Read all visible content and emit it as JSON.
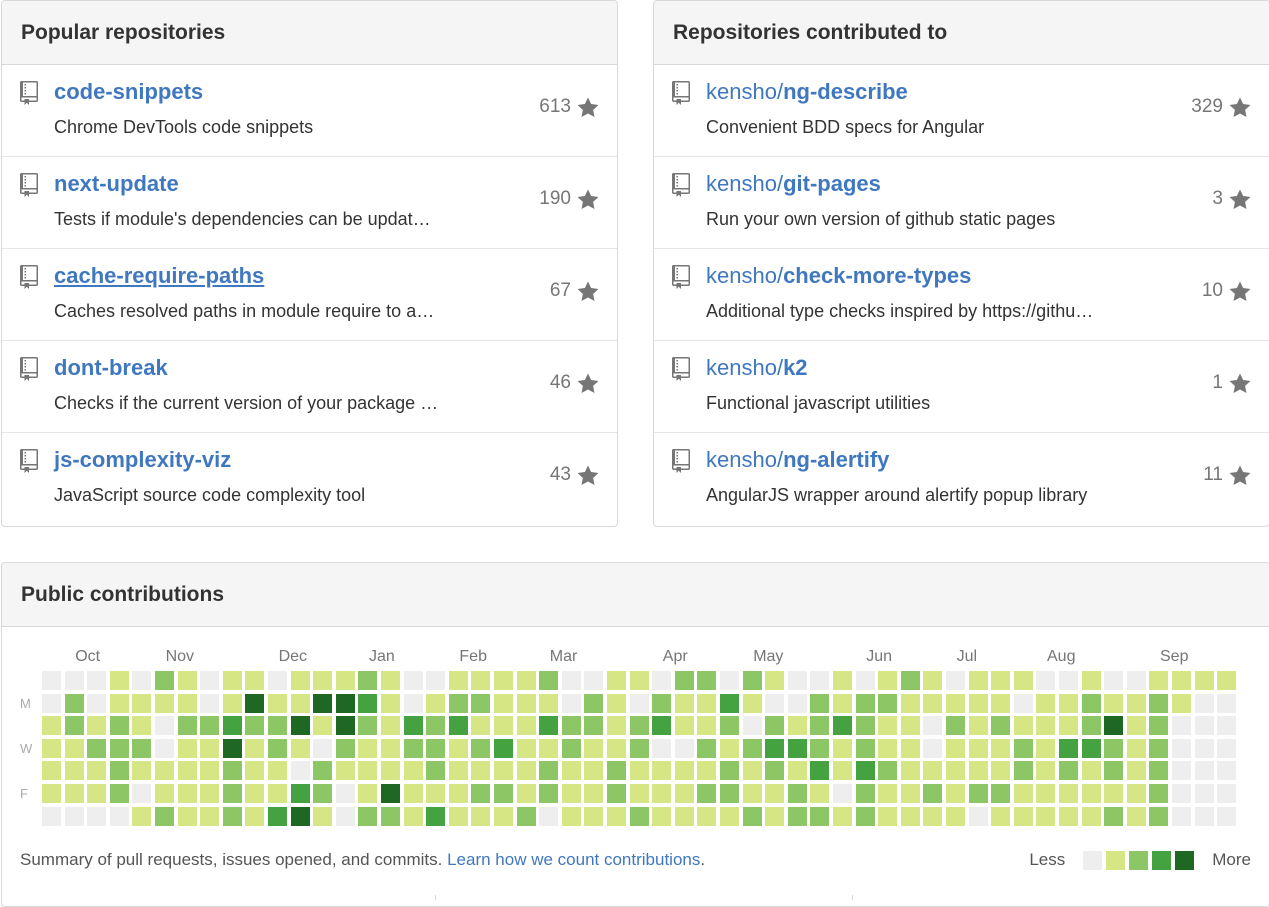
{
  "popular": {
    "title": "Popular repositories",
    "repos": [
      {
        "name": "code-snippets",
        "desc": "Chrome DevTools code snippets",
        "stars": "613"
      },
      {
        "name": "next-update",
        "desc": "Tests if module's dependencies can be updat…",
        "stars": "190"
      },
      {
        "name": "cache-require-paths",
        "desc": "Caches resolved paths in module require to a…",
        "stars": "67"
      },
      {
        "name": "dont-break",
        "desc": "Checks if the current version of your package …",
        "stars": "46"
      },
      {
        "name": "js-complexity-viz",
        "desc": "JavaScript source code complexity tool",
        "stars": "43"
      }
    ]
  },
  "contributed": {
    "title": "Repositories contributed to",
    "repos": [
      {
        "owner": "kensho/",
        "name": "ng-describe",
        "desc": "Convenient BDD specs for Angular",
        "stars": "329"
      },
      {
        "owner": "kensho/",
        "name": "git-pages",
        "desc": "Run your own version of github static pages",
        "stars": "3"
      },
      {
        "owner": "kensho/",
        "name": "check-more-types",
        "desc": "Additional type checks inspired by https://githu…",
        "stars": "10"
      },
      {
        "owner": "kensho/",
        "name": "k2",
        "desc": "Functional javascript utilities",
        "stars": "1"
      },
      {
        "owner": "kensho/",
        "name": "ng-alertify",
        "desc": "AngularJS wrapper around alertify popup library",
        "stars": "11"
      }
    ]
  },
  "contributions": {
    "title": "Public contributions",
    "months": [
      "Oct",
      "Nov",
      "Dec",
      "Jan",
      "Feb",
      "Mar",
      "Apr",
      "May",
      "Jun",
      "Jul",
      "Aug",
      "Sep"
    ],
    "month_weeks": [
      2,
      6,
      11,
      15,
      19,
      23,
      28,
      32,
      37,
      41,
      45,
      50
    ],
    "day_labels": [
      "M",
      "W",
      "F"
    ],
    "day_label_rows": [
      1,
      3,
      5
    ],
    "colors": [
      "#eeeeee",
      "#d6e685",
      "#8cc665",
      "#44a340",
      "#1e6823"
    ],
    "grid": [
      [
        0,
        0,
        0,
        1,
        0,
        2,
        1,
        0,
        1,
        1,
        0,
        1,
        1,
        1,
        2,
        1,
        0,
        0,
        1,
        1,
        1,
        1,
        2,
        0,
        0,
        1,
        1,
        0,
        2,
        2,
        0,
        2,
        1,
        0,
        0,
        1,
        0,
        1,
        2,
        1,
        0,
        1,
        1,
        1,
        0,
        0,
        1,
        0,
        0,
        1,
        1,
        1,
        1
      ],
      [
        0,
        2,
        0,
        1,
        1,
        1,
        1,
        0,
        1,
        4,
        1,
        1,
        4,
        4,
        3,
        1,
        0,
        1,
        2,
        2,
        1,
        1,
        1,
        0,
        2,
        1,
        0,
        2,
        1,
        1,
        3,
        1,
        0,
        0,
        2,
        1,
        2,
        2,
        1,
        1,
        1,
        1,
        1,
        0,
        1,
        1,
        2,
        1,
        1,
        2,
        1,
        0,
        0
      ],
      [
        1,
        2,
        1,
        2,
        1,
        0,
        2,
        2,
        3,
        2,
        2,
        4,
        1,
        4,
        2,
        1,
        3,
        2,
        3,
        1,
        1,
        1,
        3,
        2,
        2,
        1,
        2,
        3,
        1,
        1,
        2,
        0,
        2,
        1,
        2,
        3,
        2,
        1,
        1,
        0,
        2,
        1,
        2,
        1,
        1,
        1,
        2,
        4,
        1,
        2,
        0,
        0,
        0
      ],
      [
        1,
        1,
        2,
        2,
        2,
        0,
        1,
        1,
        4,
        1,
        2,
        1,
        0,
        2,
        1,
        1,
        2,
        2,
        1,
        2,
        3,
        1,
        1,
        2,
        1,
        1,
        2,
        0,
        0,
        2,
        1,
        2,
        3,
        3,
        2,
        1,
        2,
        1,
        1,
        0,
        1,
        1,
        1,
        2,
        1,
        3,
        3,
        2,
        1,
        2,
        0,
        0,
        0
      ],
      [
        1,
        1,
        1,
        2,
        1,
        1,
        1,
        1,
        2,
        1,
        1,
        0,
        2,
        1,
        1,
        1,
        1,
        2,
        1,
        1,
        1,
        1,
        2,
        1,
        1,
        2,
        1,
        1,
        1,
        1,
        2,
        1,
        2,
        1,
        3,
        1,
        3,
        2,
        1,
        1,
        1,
        1,
        1,
        2,
        1,
        2,
        1,
        2,
        1,
        2,
        0,
        0,
        0
      ],
      [
        1,
        1,
        1,
        2,
        0,
        1,
        1,
        1,
        2,
        1,
        1,
        3,
        2,
        0,
        1,
        4,
        1,
        1,
        1,
        2,
        2,
        1,
        2,
        1,
        1,
        2,
        1,
        1,
        1,
        2,
        2,
        1,
        1,
        2,
        1,
        0,
        2,
        1,
        1,
        2,
        1,
        2,
        2,
        1,
        1,
        1,
        1,
        1,
        1,
        2,
        0,
        0,
        0
      ],
      [
        0,
        0,
        0,
        0,
        1,
        2,
        1,
        1,
        2,
        1,
        3,
        4,
        1,
        0,
        2,
        2,
        1,
        3,
        1,
        1,
        1,
        2,
        0,
        1,
        1,
        1,
        2,
        1,
        1,
        1,
        1,
        2,
        1,
        2,
        2,
        1,
        2,
        1,
        1,
        1,
        1,
        0,
        1,
        1,
        1,
        1,
        1,
        2,
        1,
        2,
        0,
        0,
        0
      ]
    ],
    "summary_text": "Summary of pull requests, issues opened, and commits. ",
    "summary_link": "Learn how we count contributions",
    "summary_end": ".",
    "legend_less": "Less",
    "legend_more": "More"
  }
}
